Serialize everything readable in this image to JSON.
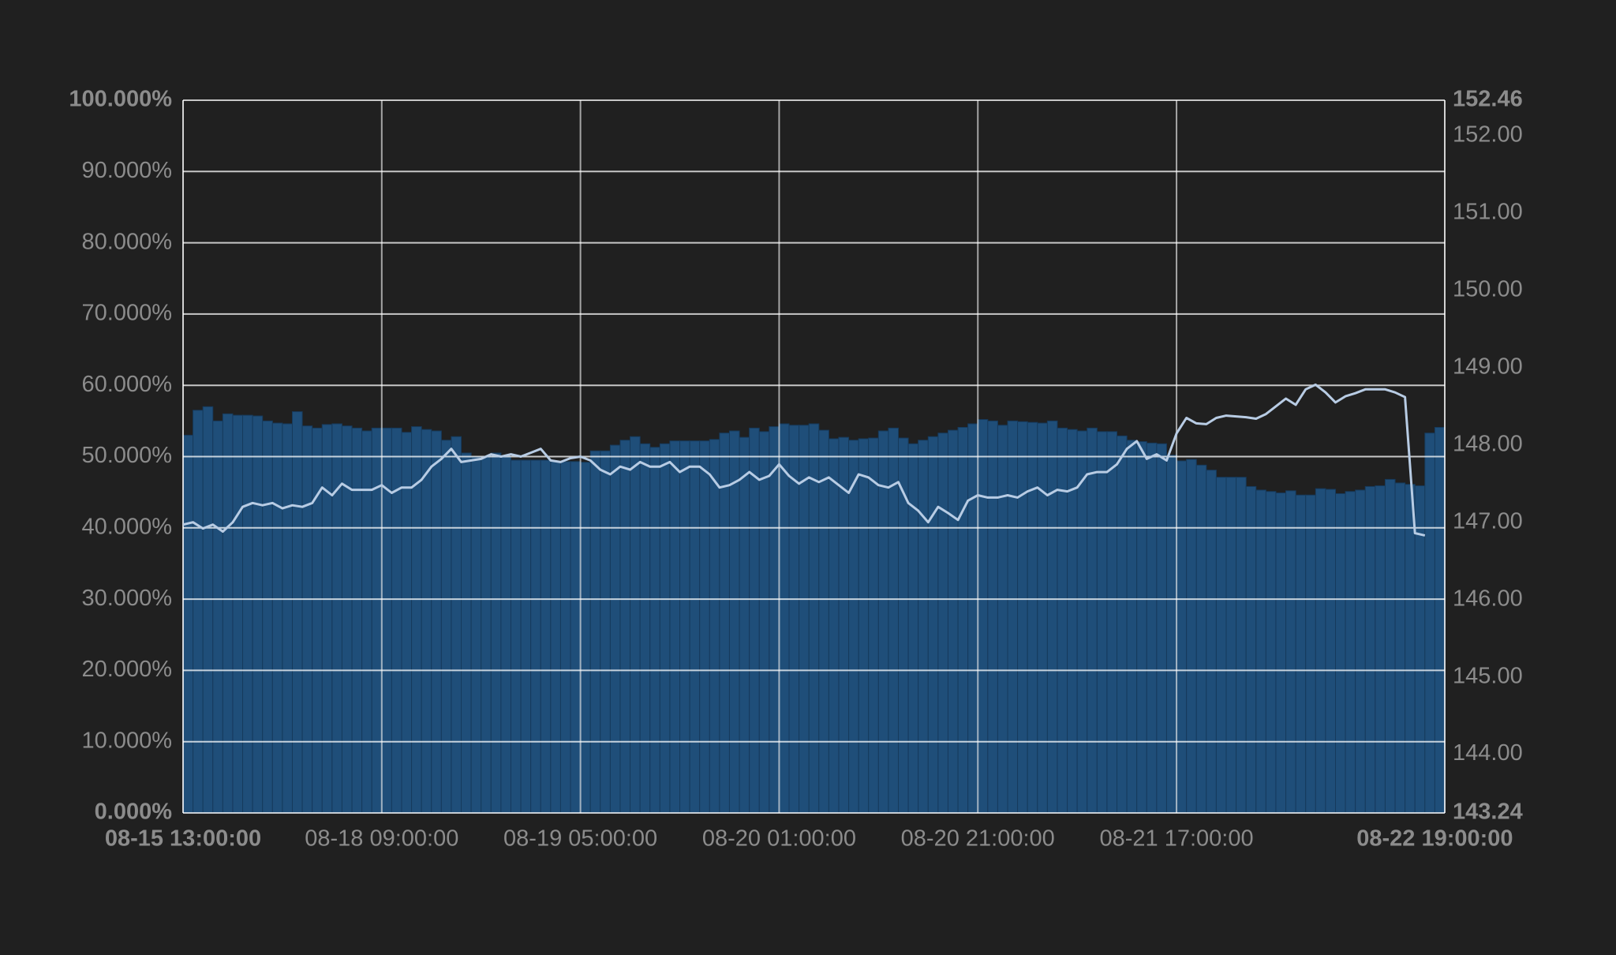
{
  "chart_data": {
    "type": "bar-line",
    "categories": [
      "08-15 13:00:00",
      null,
      null,
      null,
      null,
      null,
      null,
      null,
      null,
      null,
      null,
      null,
      null,
      null,
      null,
      null,
      null,
      null,
      null,
      null,
      "08-18 09:00:00",
      null,
      null,
      null,
      null,
      null,
      null,
      null,
      null,
      null,
      null,
      null,
      null,
      null,
      null,
      null,
      null,
      null,
      null,
      null,
      "08-19 05:00:00",
      null,
      null,
      null,
      null,
      null,
      null,
      null,
      null,
      null,
      null,
      null,
      null,
      null,
      null,
      null,
      null,
      null,
      null,
      null,
      "08-20 01:00:00",
      null,
      null,
      null,
      null,
      null,
      null,
      null,
      null,
      null,
      null,
      null,
      null,
      null,
      null,
      null,
      null,
      null,
      null,
      null,
      "08-20 21:00:00",
      null,
      null,
      null,
      null,
      null,
      null,
      null,
      null,
      null,
      null,
      null,
      null,
      null,
      null,
      null,
      null,
      null,
      null,
      null,
      "08-21 17:00:00",
      null,
      null,
      null,
      null,
      null,
      null,
      null,
      null,
      null,
      null,
      null,
      null,
      null,
      null,
      null,
      null,
      null,
      null,
      null,
      null,
      null,
      null,
      null,
      null,
      null,
      "08-22 19:00:00"
    ],
    "series": [
      {
        "color": "#1f4e79",
        "values": [
          53,
          56.5,
          57,
          55,
          56,
          55.8,
          55.8,
          55.7,
          55,
          54.7,
          54.6,
          56.3,
          54.3,
          54,
          54.5,
          54.6,
          54.3,
          54,
          53.6,
          54,
          54,
          54,
          53.4,
          54.2,
          53.8,
          53.6,
          52.3,
          52.8,
          50.5,
          50,
          50,
          50.5,
          50,
          49.5,
          49.5,
          49.5,
          49.5,
          49.3,
          49.3,
          49.3,
          49.2,
          50.8,
          50.8,
          51.6,
          52.3,
          52.8,
          51.8,
          51.3,
          51.8,
          52.2,
          52.2,
          52.2,
          52.2,
          52.4,
          53.3,
          53.6,
          52.7,
          54,
          53.5,
          54.2,
          54.6,
          54.4,
          54.4,
          54.6,
          53.7,
          52.5,
          52.7,
          52.3,
          52.5,
          52.6,
          53.6,
          54,
          52.6,
          51.8,
          52.3,
          52.8,
          53.3,
          53.7,
          54.1,
          54.6,
          55.2,
          55,
          54.4,
          55,
          54.9,
          54.8,
          54.7,
          55,
          54,
          53.8,
          53.6,
          54,
          53.5,
          53.5,
          52.9,
          52.3,
          52.1,
          51.9,
          51.8,
          50.2,
          49.4,
          49.6,
          48.8,
          48.1,
          47.1,
          47.1,
          47.1,
          45.8,
          45.3,
          45.1,
          44.9,
          45.2,
          44.6,
          44.6,
          45.5,
          45.4,
          44.8,
          45.1,
          45.3,
          45.8,
          45.9,
          46.8,
          46.3,
          46.1,
          45.9,
          53.3,
          54.1
        ]
      },
      {
        "color": "#b8cce4",
        "axis": "y2",
        "values": [
          146.97,
          147.0,
          146.92,
          146.97,
          146.88,
          147.0,
          147.2,
          147.25,
          147.22,
          147.25,
          147.18,
          147.22,
          147.2,
          147.25,
          147.45,
          147.35,
          147.5,
          147.42,
          147.42,
          147.42,
          147.48,
          147.38,
          147.45,
          147.45,
          147.55,
          147.72,
          147.82,
          147.95,
          147.78,
          147.8,
          147.82,
          147.88,
          147.85,
          147.88,
          147.85,
          147.9,
          147.95,
          147.8,
          147.78,
          147.83,
          147.85,
          147.8,
          147.68,
          147.62,
          147.72,
          147.68,
          147.78,
          147.72,
          147.72,
          147.78,
          147.65,
          147.72,
          147.72,
          147.62,
          147.45,
          147.48,
          147.55,
          147.65,
          147.55,
          147.6,
          147.75,
          147.6,
          147.5,
          147.58,
          147.52,
          147.58,
          147.48,
          147.38,
          147.62,
          147.58,
          147.48,
          147.45,
          147.52,
          147.25,
          147.15,
          147.0,
          147.2,
          147.12,
          147.03,
          147.28,
          147.35,
          147.32,
          147.32,
          147.35,
          147.32,
          147.4,
          147.45,
          147.35,
          147.42,
          147.4,
          147.45,
          147.62,
          147.65,
          147.65,
          147.75,
          147.95,
          148.05,
          147.82,
          147.88,
          147.8,
          148.15,
          148.35,
          148.28,
          148.27,
          148.35,
          148.38,
          148.37,
          148.36,
          148.34,
          148.4,
          148.5,
          148.6,
          148.52,
          148.72,
          148.78,
          148.68,
          148.55,
          148.63,
          148.67,
          148.72,
          148.72,
          148.72,
          148.68,
          148.62,
          146.86,
          146.83,
          null
        ]
      }
    ],
    "ylim": [
      0,
      100
    ],
    "yticks": [
      {
        "value": 0,
        "label": "0.000%"
      },
      {
        "value": 10,
        "label": "10.000%"
      },
      {
        "value": 20,
        "label": "20.000%"
      },
      {
        "value": 30,
        "label": "30.000%"
      },
      {
        "value": 40,
        "label": "40.000%"
      },
      {
        "value": 50,
        "label": "50.000%"
      },
      {
        "value": 60,
        "label": "60.000%"
      },
      {
        "value": 70,
        "label": "70.000%"
      },
      {
        "value": 80,
        "label": "80.000%"
      },
      {
        "value": 90,
        "label": "90.000%"
      },
      {
        "value": 100,
        "label": "100.000%"
      }
    ],
    "y2lim": [
      143.24,
      152.46
    ],
    "y2ticks": [
      143.24,
      {
        "value": 144,
        "label": "144.00"
      },
      {
        "value": 145,
        "label": "145.00"
      },
      {
        "value": 146,
        "label": "146.00"
      },
      {
        "value": 147,
        "label": "147.00"
      },
      {
        "value": 148,
        "label": "148.00"
      },
      {
        "value": 149,
        "label": "149.00"
      },
      {
        "value": 150,
        "label": "150.00"
      },
      {
        "value": 151,
        "label": "151.00"
      },
      {
        "value": 152,
        "label": "152.00"
      },
      152.46
    ],
    "grid": true
  }
}
